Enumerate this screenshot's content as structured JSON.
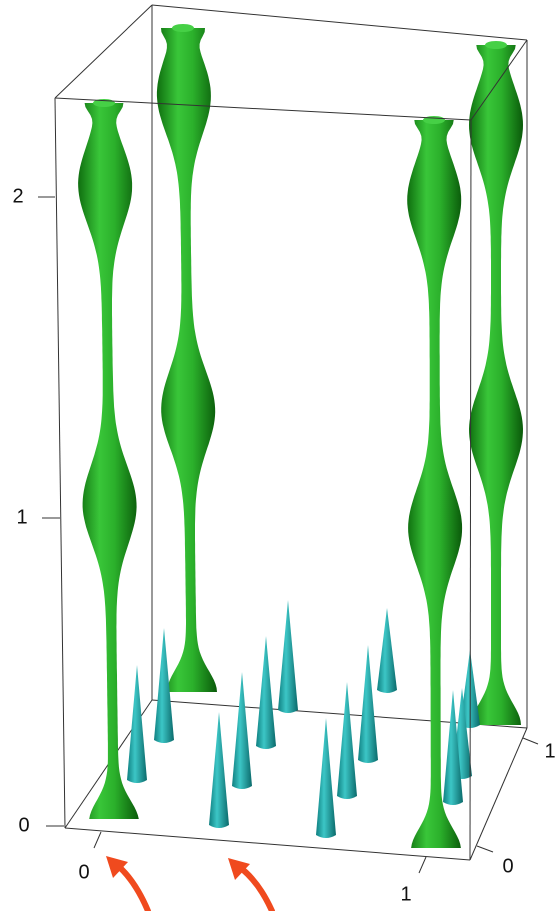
{
  "axes": {
    "z": {
      "ticks": [
        "0",
        "1",
        "2"
      ]
    },
    "x": {
      "ticks": [
        "0",
        "1"
      ]
    },
    "y": {
      "ticks": [
        "0",
        "1"
      ]
    }
  }
}
